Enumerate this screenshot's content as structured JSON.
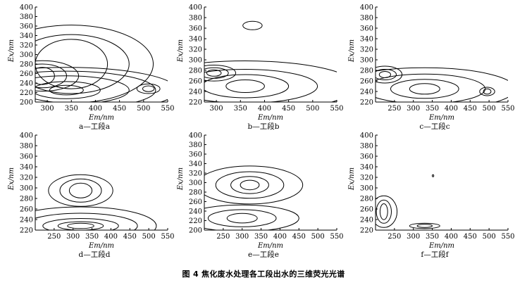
{
  "figure": {
    "caption": "图 4   焦化废水处理各工段出水的三维荧光光谱"
  },
  "chart_data": [
    {
      "type": "contour",
      "label": "a—工段a",
      "xlabel": "Em/nm",
      "ylabel": "Ex/nm",
      "xlim": [
        275,
        550
      ],
      "ylim": [
        200,
        400
      ],
      "xticks": [
        300,
        350,
        400,
        450,
        500,
        550
      ],
      "yticks": [
        200,
        220,
        240,
        260,
        280,
        300,
        320,
        340,
        360,
        380,
        400
      ],
      "peaks": [
        {
          "em": 350,
          "ex": 280,
          "levels": [
            [
              75,
              52
            ],
            [
              120,
              62
            ],
            [
              170,
              82
            ]
          ]
        },
        {
          "em": 290,
          "ex": 255,
          "levels": [
            [
              25,
              18
            ],
            [
              50,
              25
            ],
            [
              75,
              32
            ]
          ]
        },
        {
          "em": 340,
          "ex": 225,
          "levels": [
            [
              35,
              10
            ],
            [
              70,
              18
            ],
            [
              130,
              30
            ],
            [
              185,
              40
            ],
            [
              230,
              48
            ]
          ]
        },
        {
          "em": 510,
          "ex": 228,
          "levels": [
            [
              12,
              6
            ],
            [
              24,
              10
            ]
          ]
        }
      ]
    },
    {
      "type": "contour",
      "label": "b—工段b",
      "xlabel": "Em/nm",
      "ylabel": "Ex/nm",
      "xlim": [
        275,
        550
      ],
      "ylim": [
        220,
        400
      ],
      "xticks": [
        300,
        350,
        400,
        450,
        500,
        550
      ],
      "yticks": [
        220,
        240,
        260,
        280,
        300,
        320,
        340,
        360,
        380,
        400
      ],
      "peaks": [
        {
          "em": 295,
          "ex": 275,
          "levels": [
            [
              15,
              6
            ],
            [
              30,
              10
            ],
            [
              45,
              15
            ]
          ]
        },
        {
          "em": 360,
          "ex": 250,
          "levels": [
            [
              40,
              12
            ],
            [
              90,
              22
            ],
            [
              150,
              32
            ],
            [
              230,
              48
            ]
          ]
        },
        {
          "em": 375,
          "ex": 365,
          "levels": [
            [
              20,
              8
            ]
          ]
        }
      ]
    },
    {
      "type": "contour",
      "label": "c—工段c",
      "xlabel": "Em/nm",
      "ylabel": "Ex/nm",
      "xlim": [
        200,
        550
      ],
      "ylim": [
        220,
        400
      ],
      "xticks": [
        250,
        300,
        350,
        400,
        450,
        500,
        550
      ],
      "yticks": [
        220,
        240,
        260,
        280,
        300,
        320,
        340,
        360,
        380,
        400
      ],
      "peaks": [
        {
          "em": 225,
          "ex": 272,
          "levels": [
            [
              15,
              6
            ],
            [
              30,
              10
            ],
            [
              45,
              16
            ]
          ]
        },
        {
          "em": 330,
          "ex": 245,
          "levels": [
            [
              40,
              10
            ],
            [
              90,
              18
            ],
            [
              160,
              28
            ],
            [
              240,
              40
            ]
          ]
        },
        {
          "em": 495,
          "ex": 240,
          "levels": [
            [
              10,
              5
            ],
            [
              20,
              8
            ]
          ]
        }
      ]
    },
    {
      "type": "contour",
      "label": "d—工段d",
      "xlabel": "Em/nm",
      "ylabel": "Ex/nm",
      "xlim": [
        200,
        550
      ],
      "ylim": [
        220,
        400
      ],
      "xticks": [
        250,
        300,
        350,
        400,
        450,
        500,
        550
      ],
      "yticks": [
        220,
        240,
        260,
        280,
        300,
        320,
        340,
        360,
        380,
        400
      ],
      "peaks": [
        {
          "em": 320,
          "ex": 295,
          "levels": [
            [
              30,
              14
            ],
            [
              55,
              22
            ],
            [
              85,
              30
            ]
          ]
        },
        {
          "em": 320,
          "ex": 228,
          "levels": [
            [
              35,
              5
            ],
            [
              60,
              8
            ],
            [
              100,
              14
            ],
            [
              150,
              24
            ],
            [
              200,
              36
            ]
          ]
        }
      ]
    },
    {
      "type": "contour",
      "label": "e—工段e",
      "xlabel": "Em/nm",
      "ylabel": "Ex/nm",
      "xlim": [
        200,
        550
      ],
      "ylim": [
        200,
        400
      ],
      "xticks": [
        250,
        300,
        350,
        400,
        450,
        500,
        550
      ],
      "yticks": [
        200,
        220,
        240,
        260,
        280,
        300,
        320,
        340,
        360,
        380,
        400
      ],
      "peaks": [
        {
          "em": 320,
          "ex": 295,
          "levels": [
            [
              25,
              10
            ],
            [
              50,
              18
            ],
            [
              90,
              28
            ],
            [
              140,
              40
            ]
          ]
        },
        {
          "em": 300,
          "ex": 225,
          "levels": [
            [
              40,
              10
            ],
            [
              90,
              18
            ],
            [
              150,
              28
            ]
          ]
        }
      ]
    },
    {
      "type": "contour",
      "label": "f—工段f",
      "xlabel": "Em/nm",
      "ylabel": "Ex/nm",
      "xlim": [
        200,
        550
      ],
      "ylim": [
        220,
        400
      ],
      "xticks": [
        250,
        300,
        350,
        400,
        450,
        500,
        550
      ],
      "yticks": [
        220,
        240,
        260,
        280,
        300,
        320,
        340,
        360,
        380,
        400
      ],
      "peaks": [
        {
          "em": 222,
          "ex": 255,
          "levels": [
            [
              10,
              15
            ],
            [
              20,
              22
            ],
            [
              35,
              30
            ]
          ]
        },
        {
          "em": 330,
          "ex": 228,
          "levels": [
            [
              20,
              3
            ],
            [
              40,
              5
            ]
          ]
        },
        {
          "em": 352,
          "ex": 323,
          "levels": [
            [
              2,
              2
            ]
          ]
        }
      ]
    }
  ]
}
